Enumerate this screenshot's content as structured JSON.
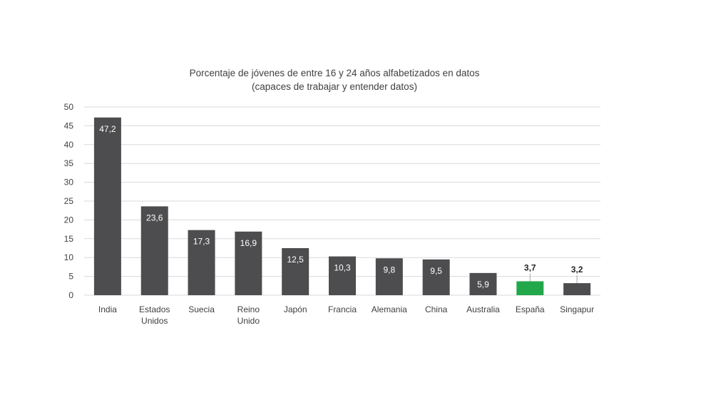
{
  "chart_data": {
    "type": "bar",
    "title": "Porcentaje de jóvenes de entre 16 y 24 años alfabetizados en datos",
    "subtitle": "(capaces de trabajar y entender datos)",
    "xlabel": "",
    "ylabel": "",
    "ylim": [
      0,
      50
    ],
    "yticks": [
      0,
      5,
      10,
      15,
      20,
      25,
      30,
      35,
      40,
      45,
      50
    ],
    "grid": true,
    "legend": "none",
    "categories": [
      [
        "India"
      ],
      [
        "Estados",
        "Unidos"
      ],
      [
        "Suecia"
      ],
      [
        "Reino",
        "Unido"
      ],
      [
        "Japón"
      ],
      [
        "Francia"
      ],
      [
        "Alemania"
      ],
      [
        "China"
      ],
      [
        "Australia"
      ],
      [
        "España"
      ],
      [
        "Singapur"
      ]
    ],
    "values": [
      47.2,
      23.6,
      17.3,
      16.9,
      12.5,
      10.3,
      9.8,
      9.5,
      5.9,
      3.7,
      3.2
    ],
    "value_labels": [
      "47,2",
      "23,6",
      "17,3",
      "16,9",
      "12,5",
      "10,3",
      "9,8",
      "9,5",
      "5,9",
      "3,7",
      "3,2"
    ],
    "bar_color": "#4d4d4f",
    "highlight_color": "#22a84a",
    "highlight_index": 9
  }
}
